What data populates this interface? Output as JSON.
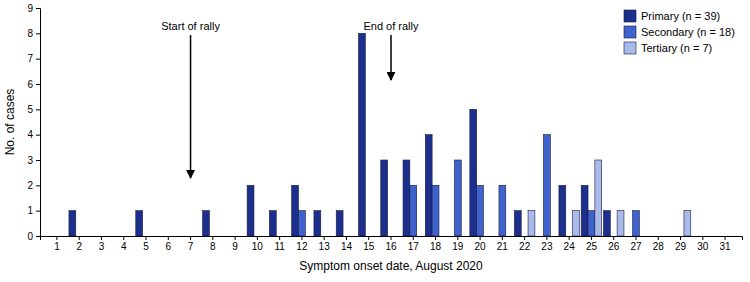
{
  "chart_data": {
    "type": "bar",
    "categories": [
      "1",
      "2",
      "3",
      "4",
      "5",
      "6",
      "7",
      "8",
      "9",
      "10",
      "11",
      "12",
      "13",
      "14",
      "15",
      "16",
      "17",
      "18",
      "19",
      "20",
      "21",
      "22",
      "23",
      "24",
      "25",
      "26",
      "27",
      "28",
      "29",
      "30",
      "31"
    ],
    "series": [
      {
        "name": "Primary (n = 39)",
        "color": "#1c2f8c",
        "values": [
          0,
          1,
          0,
          0,
          1,
          0,
          0,
          1,
          0,
          2,
          1,
          2,
          1,
          1,
          8,
          3,
          3,
          4,
          0,
          5,
          0,
          1,
          0,
          2,
          2,
          1,
          0,
          0,
          0,
          0,
          0
        ]
      },
      {
        "name": "Secondary (n = 18)",
        "color": "#3f63cc",
        "values": [
          0,
          0,
          0,
          0,
          0,
          0,
          0,
          0,
          0,
          0,
          0,
          1,
          0,
          0,
          0,
          0,
          2,
          2,
          3,
          2,
          2,
          0,
          4,
          0,
          1,
          0,
          1,
          0,
          0,
          0,
          0
        ]
      },
      {
        "name": "Tertiary (n = 7)",
        "color": "#a9bbea",
        "values": [
          0,
          0,
          0,
          0,
          0,
          0,
          0,
          0,
          0,
          0,
          0,
          0,
          0,
          0,
          0,
          0,
          0,
          0,
          0,
          0,
          0,
          1,
          0,
          1,
          3,
          1,
          0,
          0,
          1,
          0,
          0
        ]
      }
    ],
    "x_label": "Symptom onset date, August 2020",
    "y_label": "No. of cases",
    "ylim": [
      0,
      9
    ],
    "yticks": [
      0,
      1,
      2,
      3,
      4,
      5,
      6,
      7,
      8,
      9
    ],
    "grid": false,
    "legend": "top-right",
    "annotations": [
      {
        "text": "Start of rally",
        "x": "7"
      },
      {
        "text": "End of rally",
        "x": "16"
      }
    ]
  }
}
